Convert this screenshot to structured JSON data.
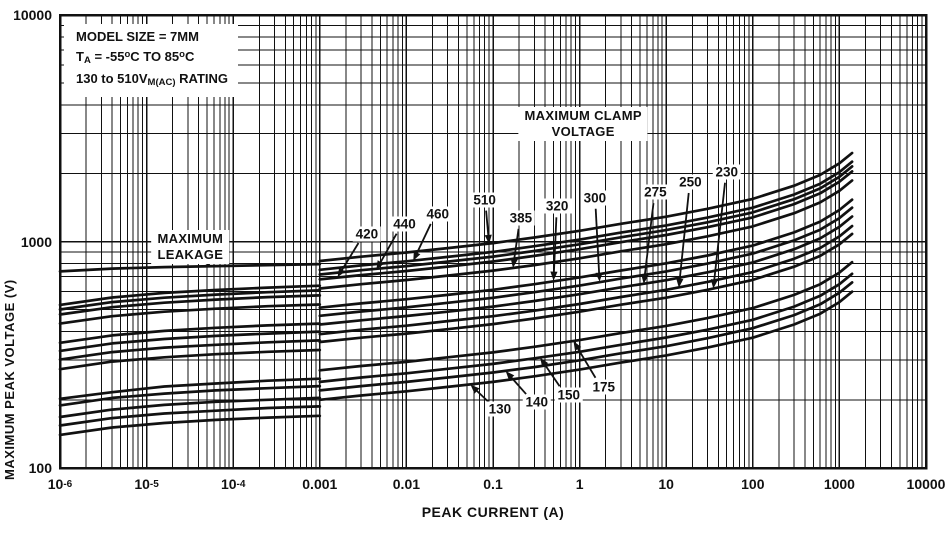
{
  "figure": {
    "title_block": {
      "line1": [
        {
          "t": "MODEL SIZE = 7MM"
        }
      ],
      "line2": [
        {
          "t": "T"
        },
        {
          "sub": "A"
        },
        {
          "t": " = -55"
        },
        {
          "sup": "o"
        },
        {
          "t": "C TO 85"
        },
        {
          "sup": "o"
        },
        {
          "t": "C"
        }
      ],
      "line3": [
        {
          "t": "130 to 510V"
        },
        {
          "sub": "M(AC)"
        },
        {
          "t": " RATING"
        }
      ]
    }
  },
  "chart_data": {
    "type": "line",
    "title": "",
    "xlabel": "PEAK CURRENT (A)",
    "ylabel": "MAXIMUM PEAK VOLTAGE (V)",
    "x_scale": "log",
    "y_scale": "log",
    "xlim": [
      1e-06,
      10000
    ],
    "ylim": [
      100,
      10000
    ],
    "grid": true,
    "x_ticks": [
      {
        "base": "10",
        "sup": "-6",
        "decade": -6
      },
      {
        "base": "10",
        "sup": "-5",
        "decade": -5
      },
      {
        "base": "10",
        "sup": "-4",
        "decade": -4
      },
      {
        "label": "0.001",
        "decade": -3
      },
      {
        "label": "0.01",
        "decade": -2
      },
      {
        "label": "0.1",
        "decade": -1
      },
      {
        "label": "1",
        "decade": 0
      },
      {
        "label": "10",
        "decade": 1
      },
      {
        "label": "100",
        "decade": 2
      },
      {
        "label": "1000",
        "decade": 3
      },
      {
        "label": "10000",
        "decade": 4
      }
    ],
    "y_ticks": [
      {
        "label": "100",
        "value": 100
      },
      {
        "label": "1000",
        "value": 1000
      },
      {
        "label": "10000",
        "value": 10000
      }
    ],
    "leakage_currents": [
      1e-06,
      4e-06,
      1.6e-05,
      6.3e-05,
      0.00025,
      0.001
    ],
    "clamp_currents": [
      0.001,
      0.003,
      0.01,
      0.03,
      0.1,
      0.3,
      1,
      3,
      10,
      30,
      100,
      300,
      600,
      1000,
      1400
    ],
    "series": [
      {
        "rating": "130",
        "nominal_v": 200,
        "leakage_v": [
          140,
          151,
          158,
          163,
          167,
          170
        ],
        "clamp_v": [
          200,
          209,
          218,
          228,
          240,
          254,
          272,
          292,
          314,
          340,
          376,
          430,
          480,
          540,
          600
        ]
      },
      {
        "rating": "140",
        "nominal_v": 220,
        "leakage_v": [
          154,
          166,
          174,
          179,
          184,
          187
        ],
        "clamp_v": [
          220,
          230,
          240,
          251,
          264,
          279,
          299,
          321,
          345,
          374,
          414,
          473,
          528,
          594,
          660
        ]
      },
      {
        "rating": "150",
        "nominal_v": 240,
        "leakage_v": [
          168,
          181,
          190,
          196,
          200,
          204
        ],
        "clamp_v": [
          240,
          251,
          262,
          274,
          288,
          305,
          326,
          350,
          377,
          408,
          451,
          516,
          576,
          648,
          720
        ]
      },
      {
        "rating": "175",
        "nominal_v": 270,
        "leakage_v": [
          189,
          204,
          213,
          220,
          225,
          230
        ],
        "clamp_v": [
          270,
          282,
          294,
          308,
          324,
          343,
          367,
          394,
          424,
          459,
          508,
          581,
          648,
          729,
          810
        ]
      },
      {
        "rating": "230",
        "nominal_v": 360,
        "leakage_v": [
          202,
          216,
          229,
          236,
          243,
          248
        ],
        "clamp_v": [
          360,
          376,
          392,
          410,
          432,
          457,
          490,
          526,
          565,
          612,
          677,
          774,
          864,
          972,
          1080
        ]
      },
      {
        "rating": "250",
        "nominal_v": 390,
        "leakage_v": [
          273,
          295,
          308,
          318,
          326,
          332
        ],
        "clamp_v": [
          390,
          408,
          425,
          445,
          468,
          495,
          530,
          569,
          612,
          663,
          733,
          839,
          936,
          1053,
          1170
        ]
      },
      {
        "rating": "275",
        "nominal_v": 430,
        "leakage_v": [
          301,
          325,
          340,
          350,
          359,
          366
        ],
        "clamp_v": [
          430,
          449,
          469,
          490,
          516,
          546,
          585,
          628,
          675,
          731,
          808,
          925,
          1032,
          1161,
          1290
        ]
      },
      {
        "rating": "300",
        "nominal_v": 470,
        "leakage_v": [
          329,
          355,
          371,
          383,
          392,
          400
        ],
        "clamp_v": [
          470,
          491,
          512,
          536,
          564,
          597,
          639,
          686,
          738,
          799,
          884,
          1011,
          1128,
          1269,
          1410
        ]
      },
      {
        "rating": "320",
        "nominal_v": 510,
        "leakage_v": [
          357,
          385,
          403,
          416,
          426,
          434
        ],
        "clamp_v": [
          510,
          533,
          556,
          581,
          612,
          648,
          694,
          745,
          801,
          867,
          959,
          1097,
          1224,
          1377,
          1530
        ]
      },
      {
        "rating": "385",
        "nominal_v": 620,
        "leakage_v": [
          434,
          468,
          490,
          505,
          518,
          527
        ],
        "clamp_v": [
          620,
          648,
          676,
          707,
          744,
          787,
          843,
          905,
          973,
          1054,
          1166,
          1333,
          1488,
          1674,
          1860
        ]
      },
      {
        "rating": "420",
        "nominal_v": 680,
        "leakage_v": [
          476,
          513,
          537,
          554,
          568,
          578
        ],
        "clamp_v": [
          680,
          711,
          741,
          775,
          816,
          864,
          925,
          993,
          1068,
          1156,
          1278,
          1462,
          1632,
          1836,
          2040
        ]
      },
      {
        "rating": "440",
        "nominal_v": 715,
        "leakage_v": [
          501,
          540,
          565,
          583,
          597,
          608
        ],
        "clamp_v": [
          715,
          747,
          779,
          815,
          858,
          908,
          972,
          1044,
          1123,
          1215,
          1344,
          1537,
          1716,
          1931,
          2145
        ]
      },
      {
        "rating": "460",
        "nominal_v": 750,
        "leakage_v": [
          525,
          566,
          593,
          611,
          626,
          638
        ],
        "clamp_v": [
          750,
          784,
          818,
          855,
          900,
          953,
          1020,
          1095,
          1178,
          1275,
          1410,
          1613,
          1800,
          2025,
          2250
        ]
      },
      {
        "rating": "510",
        "nominal_v": 820,
        "leakage_v": [
          738,
          759,
          771,
          779,
          787,
          795
        ],
        "clamp_v": [
          820,
          857,
          894,
          935,
          984,
          1041,
          1115,
          1197,
          1287,
          1394,
          1542,
          1763,
          1968,
          2214,
          2460
        ]
      }
    ],
    "annotations": {
      "clamp_region_label": {
        "lines": [
          "MAXIMUM CLAMP",
          "VOLTAGE"
        ],
        "i": 1.1,
        "v": 3300
      },
      "leakage_region_label": {
        "lines": [
          "MAXIMUM",
          "LEAKAGE"
        ],
        "i": 3.2e-05,
        "v": 950,
        "arrow_to": {
          "i": 5.5e-05,
          "v": 778
        }
      },
      "curve_labels": [
        {
          "text": "420",
          "i": 0.0035,
          "v": 1080,
          "to_i": 0.0016,
          "to_v": 695
        },
        {
          "text": "440",
          "i": 0.0095,
          "v": 1190,
          "to_i": 0.0045,
          "to_v": 750
        },
        {
          "text": "460",
          "i": 0.023,
          "v": 1320,
          "to_i": 0.012,
          "to_v": 822
        },
        {
          "text": "510",
          "i": 0.08,
          "v": 1530,
          "to_i": 0.09,
          "to_v": 976
        },
        {
          "text": "385",
          "i": 0.21,
          "v": 1270,
          "to_i": 0.17,
          "to_v": 765
        },
        {
          "text": "320",
          "i": 0.55,
          "v": 1430,
          "to_i": 0.5,
          "to_v": 672
        },
        {
          "text": "300",
          "i": 1.5,
          "v": 1560,
          "to_i": 1.7,
          "to_v": 665
        },
        {
          "text": "275",
          "i": 7.5,
          "v": 1650,
          "to_i": 5.5,
          "to_v": 650
        },
        {
          "text": "250",
          "i": 19,
          "v": 1830,
          "to_i": 14,
          "to_v": 625
        },
        {
          "text": "230",
          "i": 50,
          "v": 2030,
          "to_i": 35,
          "to_v": 620
        },
        {
          "text": "130",
          "i": 0.12,
          "v": 183,
          "to_i": 0.055,
          "to_v": 233
        },
        {
          "text": "140",
          "i": 0.32,
          "v": 196,
          "to_i": 0.14,
          "to_v": 268
        },
        {
          "text": "150",
          "i": 0.75,
          "v": 210,
          "to_i": 0.35,
          "to_v": 307
        },
        {
          "text": "175",
          "i": 1.9,
          "v": 228,
          "to_i": 0.85,
          "to_v": 363
        }
      ]
    },
    "colors": {
      "ink": "#111111",
      "background": "#ffffff"
    }
  }
}
